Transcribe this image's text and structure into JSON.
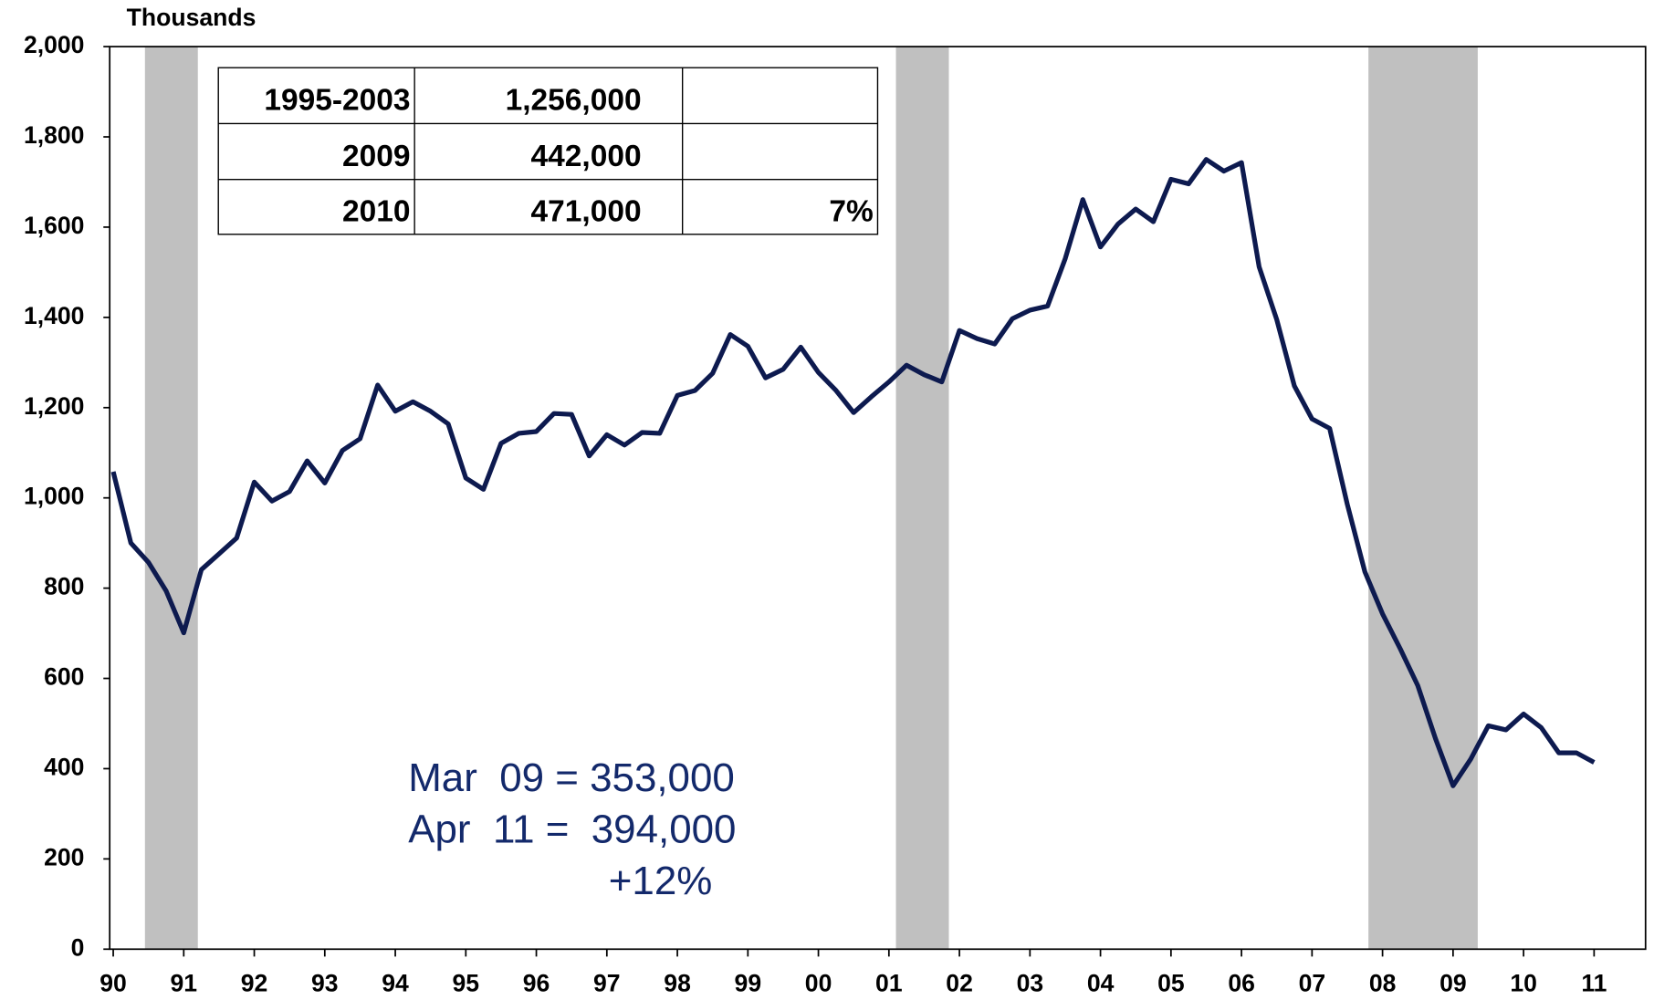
{
  "chart_data": {
    "type": "line",
    "y_axis_label": "Thousands",
    "x": [
      1990,
      1990.25,
      1990.5,
      1990.75,
      1991,
      1991.25,
      1991.5,
      1991.75,
      1992,
      1992.25,
      1992.5,
      1992.75,
      1993,
      1993.25,
      1993.5,
      1993.75,
      1994,
      1994.25,
      1994.5,
      1994.75,
      1995,
      1995.25,
      1995.5,
      1995.75,
      1996,
      1996.25,
      1996.5,
      1996.75,
      1997,
      1997.25,
      1997.5,
      1997.75,
      1998,
      1998.25,
      1998.5,
      1998.75,
      1999,
      1999.25,
      1999.5,
      1999.75,
      2000,
      2000.25,
      2000.5,
      2000.75,
      2001,
      2001.25,
      2001.5,
      2001.75,
      2002,
      2002.25,
      2002.5,
      2002.75,
      2003,
      2003.25,
      2003.5,
      2003.75,
      2004,
      2004.25,
      2004.5,
      2004.75,
      2005,
      2005.25,
      2005.5,
      2005.75,
      2006,
      2006.25,
      2006.5,
      2006.75,
      2007,
      2007.25,
      2007.5,
      2007.75,
      2008,
      2008.25,
      2008.5,
      2008.75,
      2009,
      2009.25,
      2009.5,
      2009.75,
      2010,
      2010.25,
      2010.5,
      2010.75,
      2011
    ],
    "series": [
      {
        "color": "#0d1a4f",
        "values": [
          1058,
          900,
          857,
          794,
          701,
          841,
          876,
          911,
          1035,
          993,
          1014,
          1082,
          1033,
          1105,
          1131,
          1250,
          1192,
          1213,
          1192,
          1164,
          1044,
          1019,
          1121,
          1143,
          1147,
          1187,
          1185,
          1093,
          1140,
          1117,
          1145,
          1143,
          1227,
          1238,
          1276,
          1362,
          1336,
          1266,
          1285,
          1334,
          1278,
          1238,
          1189,
          1224,
          1257,
          1294,
          1273,
          1257,
          1371,
          1353,
          1341,
          1397,
          1416,
          1425,
          1530,
          1661,
          1556,
          1607,
          1640,
          1612,
          1706,
          1696,
          1750,
          1724,
          1743,
          1512,
          1395,
          1248,
          1175,
          1154,
          986,
          836,
          743,
          666,
          584,
          467,
          362,
          421,
          495,
          486,
          521,
          491,
          435,
          435,
          414
        ]
      }
    ],
    "shaded_periods": [
      [
        1990.45,
        1991.2
      ],
      [
        2001.1,
        2001.85
      ],
      [
        2007.8,
        2009.35
      ]
    ],
    "shade_color": "#c0c0c0",
    "xlim": [
      1989.95,
      2011.73
    ],
    "xticks": [
      {
        "value": 1990,
        "label": "90"
      },
      {
        "value": 1991,
        "label": "91"
      },
      {
        "value": 1992,
        "label": "92"
      },
      {
        "value": 1993,
        "label": "93"
      },
      {
        "value": 1994,
        "label": "94"
      },
      {
        "value": 1995,
        "label": "95"
      },
      {
        "value": 1996,
        "label": "96"
      },
      {
        "value": 1997,
        "label": "97"
      },
      {
        "value": 1998,
        "label": "98"
      },
      {
        "value": 1999,
        "label": "99"
      },
      {
        "value": 2000,
        "label": "00"
      },
      {
        "value": 2001,
        "label": "01"
      },
      {
        "value": 2002,
        "label": "02"
      },
      {
        "value": 2003,
        "label": "03"
      },
      {
        "value": 2004,
        "label": "04"
      },
      {
        "value": 2005,
        "label": "05"
      },
      {
        "value": 2006,
        "label": "06"
      },
      {
        "value": 2007,
        "label": "07"
      },
      {
        "value": 2008,
        "label": "08"
      },
      {
        "value": 2009,
        "label": "09"
      },
      {
        "value": 2010,
        "label": "10"
      },
      {
        "value": 2011,
        "label": "11"
      }
    ],
    "ylim": [
      0,
      2000
    ],
    "yticks": [
      0,
      200,
      400,
      600,
      800,
      {
        "value": 1000,
        "label": "1,000"
      },
      {
        "value": 1200,
        "label": "1,200"
      },
      {
        "value": 1400,
        "label": "1,400"
      },
      {
        "value": 1600,
        "label": "1,600"
      },
      {
        "value": 1800,
        "label": "1,800"
      },
      {
        "value": 2000,
        "label": "2,000"
      }
    ],
    "grid": false,
    "table": [
      [
        "1995-2003",
        "1,256,000"
      ],
      [
        "2009",
        "442,000"
      ],
      [
        "2010",
        "471,000",
        "7%"
      ]
    ],
    "annotations": [
      "Mar  09 = 353,000",
      "Apr  11 =  394,000",
      "+12%"
    ]
  }
}
